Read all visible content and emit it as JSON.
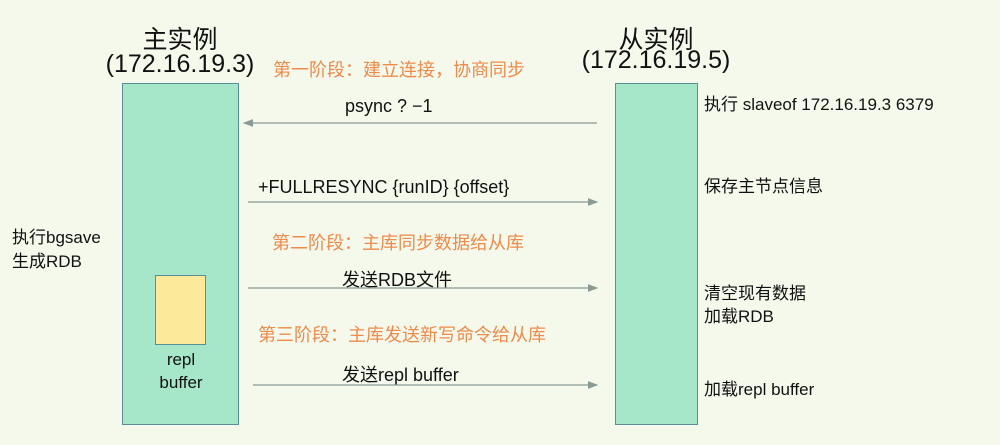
{
  "master": {
    "title": "主实例",
    "ip": "(172.16.19.3)",
    "action": [
      "执行bgsave",
      "生成RDB"
    ],
    "buffer_label": [
      "repl",
      "buffer"
    ]
  },
  "slave": {
    "title": "从实例",
    "ip": "(172.16.19.5)",
    "notes": [
      "执行 slaveof  172.16.19.3  6379",
      "保存主节点信息",
      "清空现有数据",
      "加载RDB",
      "加载repl buffer"
    ]
  },
  "phases": [
    "第一阶段：建立连接，协商同步",
    "第二阶段：主库同步数据给从库",
    "第三阶段：主库发送新写命令给从库"
  ],
  "messages": [
    {
      "label": "psync ? −1",
      "direction": "slave-to-master"
    },
    {
      "label": "+FULLRESYNC {runID} {offset}",
      "direction": "master-to-slave"
    },
    {
      "label": "发送RDB文件",
      "direction": "master-to-slave"
    },
    {
      "label": "发送repl buffer",
      "direction": "master-to-slave"
    }
  ],
  "colors": {
    "instance": "#a5e7c8",
    "buffer": "#fce99a",
    "phase": "#ee8a4a",
    "arrow": "#8a9a94"
  }
}
